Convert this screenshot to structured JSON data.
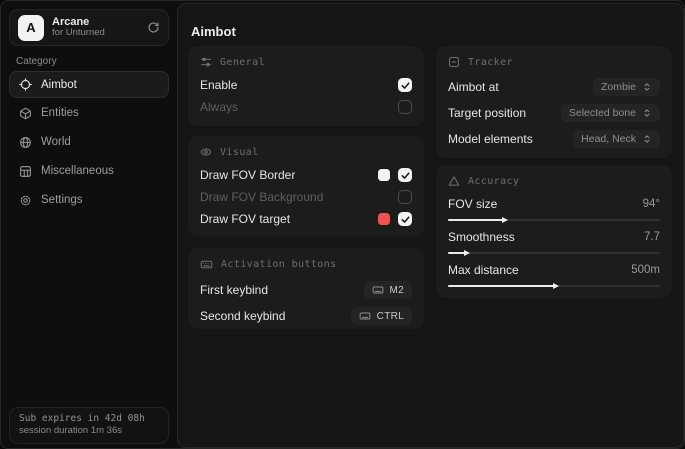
{
  "app": {
    "logo_letter": "A",
    "name": "Arcane",
    "subtitle": "for Unturned"
  },
  "sidebar": {
    "category_label": "Category",
    "items": [
      {
        "label": "Aimbot",
        "icon": "crosshair-icon",
        "active": true
      },
      {
        "label": "Entities",
        "icon": "entities-icon",
        "active": false
      },
      {
        "label": "World",
        "icon": "globe-icon",
        "active": false
      },
      {
        "label": "Miscellaneous",
        "icon": "grid-icon",
        "active": false
      },
      {
        "label": "Settings",
        "icon": "gear-icon",
        "active": false
      }
    ],
    "footer": {
      "sub_expires": "Sub expires in 42d 08h",
      "session_duration": "session duration 1m 36s"
    }
  },
  "main": {
    "title": "Aimbot",
    "cards": {
      "general": {
        "title": "General",
        "rows": [
          {
            "label": "Enable",
            "checked": true
          },
          {
            "label": "Always",
            "checked": false
          }
        ]
      },
      "visual": {
        "title": "Visual",
        "rows": [
          {
            "label": "Draw FOV Border",
            "swatch": "#f2f2f2",
            "checked": true
          },
          {
            "label": "Draw FOV Background",
            "checked": false
          },
          {
            "label": "Draw FOV target",
            "swatch": "#ee5350",
            "checked": true
          }
        ]
      },
      "activation": {
        "title": "Activation buttons",
        "rows": [
          {
            "label": "First keybind",
            "key": "M2"
          },
          {
            "label": "Second keybind",
            "key": "CTRL"
          }
        ]
      },
      "tracker": {
        "title": "Tracker",
        "rows": [
          {
            "label": "Aimbot at",
            "value": "Zombie"
          },
          {
            "label": "Target position",
            "value": "Selected bone"
          },
          {
            "label": "Model elements",
            "value": "Head, Neck"
          }
        ]
      },
      "accuracy": {
        "title": "Accuracy",
        "rows": [
          {
            "label": "FOV size",
            "value": "94°",
            "percent": 26
          },
          {
            "label": "Smoothness",
            "value": "7.7",
            "percent": 8
          },
          {
            "label": "Max distance",
            "value": "500m",
            "percent": 50
          }
        ]
      }
    }
  }
}
